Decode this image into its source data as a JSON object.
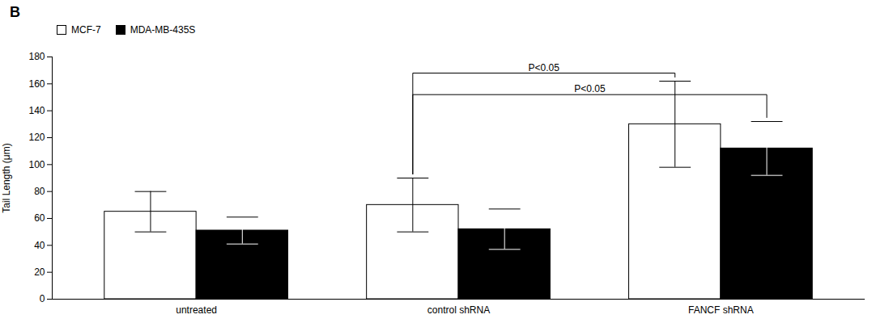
{
  "chart_data": {
    "type": "bar",
    "title": "B",
    "categories": [
      "untreated",
      "control shRNA",
      "FANCF shRNA"
    ],
    "series": [
      {
        "name": "MCF-7",
        "color": "white",
        "values": [
          65,
          70,
          130
        ],
        "errors": [
          15,
          20,
          32
        ]
      },
      {
        "name": "MDA-MB-435S",
        "color": "black",
        "values": [
          51,
          52,
          112
        ],
        "errors": [
          10,
          15,
          20
        ]
      }
    ],
    "ylabel": "Tail Length (μm)",
    "ylim": [
      0,
      180
    ],
    "yticks": [
      0,
      20,
      40,
      60,
      80,
      100,
      120,
      140,
      160,
      180
    ],
    "legend": "upper left",
    "annotations": [
      {
        "text": "P<0.05",
        "y": 152,
        "from": {
          "category": "control shRNA",
          "series": "MCF-7"
        },
        "to": {
          "category": "FANCF shRNA",
          "series": "MDA-MB-435S"
        }
      },
      {
        "text": "P<0.05",
        "y": 168,
        "from": {
          "category": "control shRNA",
          "series": "MCF-7"
        },
        "to": {
          "category": "FANCF shRNA",
          "series": "MCF-7"
        }
      }
    ]
  }
}
